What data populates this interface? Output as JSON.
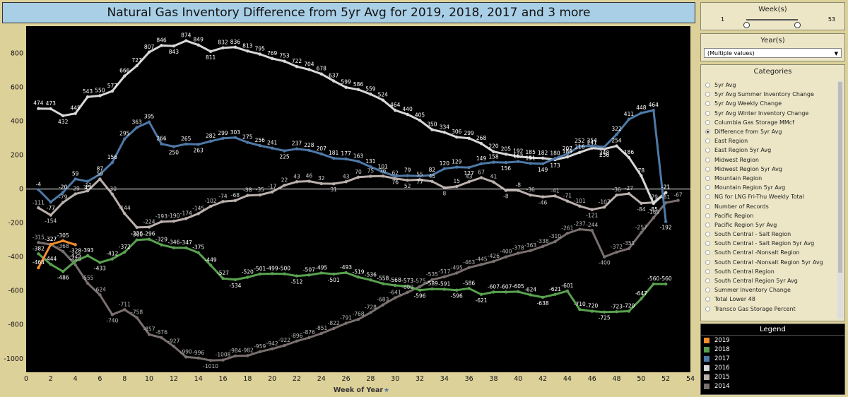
{
  "title": "Natural Gas Inventory Difference from 5yr Avg for 2019, 2018, 2017 and 3 more",
  "filters": {
    "week": {
      "title": "Week(s)",
      "min": "1",
      "max": "53"
    },
    "year": {
      "title": "Year(s)",
      "value": "(Multiple values)"
    }
  },
  "categories": {
    "title": "Categories",
    "selected": "Difference from 5yr Avg",
    "items": [
      "5yr Avg",
      "5yr Avg Summer Inventory Change",
      "5yr Avg Weekly Change",
      "5yr Avg Winter Inventory Change",
      "Columbia Gas Storage MMcf",
      "Difference from 5yr Avg",
      "East Region",
      "East Region 5yr Avg",
      "Midwest Region",
      "Midwest Region 5yr Avg",
      "Mountain Region",
      "Mountain Region 5yr Avg",
      "NG for LNG Fri-Thu Weekly Total",
      "Number of Records",
      "Pacific Region",
      "Pacific Region 5yr Avg",
      "South Central - Salt Region",
      "South Central - Salt Region 5yr Avg",
      "South Central -Nonsalt Region",
      "South Central -Nonsalt Region 5yr Avg",
      "South Central Region",
      "South Central Region 5yr Avg",
      "Summer Inventory Change",
      "Total Lower 48",
      "Transco Gas Storage Percent"
    ]
  },
  "legend": {
    "title": "Legend",
    "items": [
      {
        "label": "2019",
        "color": "#f28e2b"
      },
      {
        "label": "2018",
        "color": "#59a14f"
      },
      {
        "label": "2017",
        "color": "#4e79a7"
      },
      {
        "label": "2016",
        "color": "#d8d8d8"
      },
      {
        "label": "2015",
        "color": "#bab0ac"
      },
      {
        "label": "2014",
        "color": "#79706e"
      }
    ]
  },
  "chart_data": {
    "type": "line",
    "title": "",
    "xlabel": "Week of Year",
    "ylabel": "",
    "xlim": [
      0,
      54
    ],
    "ylim": [
      -1080,
      960
    ],
    "x_ticks": [
      0,
      2,
      4,
      6,
      8,
      10,
      12,
      14,
      16,
      18,
      20,
      22,
      24,
      26,
      28,
      30,
      32,
      34,
      36,
      38,
      40,
      42,
      44,
      46,
      48,
      50,
      52,
      54
    ],
    "y_ticks": [
      -1000,
      -800,
      -600,
      -400,
      -200,
      0,
      200,
      400,
      600,
      800
    ],
    "grid": false,
    "legend_position": "right",
    "series": [
      {
        "name": "2014",
        "color": "#79706e",
        "label_color": "#bdbdbd",
        "x": [
          1,
          2,
          3,
          4,
          5,
          6,
          7,
          8,
          9,
          10,
          11,
          12,
          13,
          14,
          15,
          16,
          17,
          18,
          19,
          20,
          21,
          22,
          23,
          24,
          25,
          26,
          27,
          28,
          29,
          30,
          31,
          32,
          33,
          34,
          35,
          36,
          37,
          38,
          39,
          40,
          41,
          42,
          43,
          44,
          45,
          46,
          47,
          48,
          49,
          50,
          51,
          52,
          53
        ],
        "y": [
          -315,
          -327,
          -368,
          -446,
          -555,
          -624,
          -740,
          -711,
          -758,
          -857,
          -876,
          -927,
          -990,
          -996,
          -1010,
          -1008,
          -984,
          -982,
          -959,
          -942,
          -922,
          -896,
          -876,
          -851,
          -822,
          -791,
          -768,
          -728,
          -683,
          -641,
          -609,
          -575,
          -535,
          -517,
          -495,
          -463,
          -445,
          -426,
          -400,
          -378,
          -363,
          -338,
          -310,
          -261,
          -237,
          -244,
          -400,
          -372,
          -351,
          -257,
          -169,
          -81,
          -67
        ]
      },
      {
        "name": "2015",
        "color": "#bab0ac",
        "label_color": "#d0d0d0",
        "x": [
          1,
          2,
          3,
          4,
          5,
          6,
          7,
          8,
          9,
          10,
          11,
          12,
          13,
          14,
          15,
          16,
          17,
          18,
          19,
          20,
          21,
          22,
          23,
          24,
          25,
          26,
          27,
          28,
          29,
          30,
          31,
          32,
          33,
          34,
          35,
          36,
          37,
          38,
          39,
          40,
          41,
          42,
          43,
          44,
          45,
          46,
          47,
          48,
          49,
          50,
          51,
          52
        ],
        "y": [
          -111,
          -154,
          -79,
          -29,
          -11,
          59,
          -30,
          -144,
          -226,
          -224,
          -193,
          -190,
          -174,
          -145,
          -102,
          -74,
          -68,
          -38,
          -35,
          -17,
          22,
          43,
          46,
          32,
          31,
          43,
          70,
          75,
          76,
          62,
          52,
          55,
          45,
          8,
          15,
          43,
          67,
          41,
          -8,
          -8,
          -36,
          -46,
          -41,
          -71,
          -101,
          -121,
          -107,
          -36,
          -27,
          -84,
          -79,
          -21
        ]
      },
      {
        "name": "2016",
        "color": "#d8d8d8",
        "label_color": "#ffffff",
        "x": [
          1,
          2,
          3,
          4,
          5,
          6,
          7,
          8,
          9,
          10,
          11,
          12,
          13,
          14,
          15,
          16,
          17,
          18,
          19,
          20,
          21,
          22,
          23,
          24,
          25,
          26,
          27,
          28,
          29,
          30,
          31,
          32,
          33,
          34,
          35,
          36,
          37,
          38,
          39,
          40,
          41,
          42,
          43,
          44,
          45,
          46,
          47,
          48,
          49,
          50,
          51,
          52
        ],
        "y": [
          474,
          473,
          432,
          445,
          543,
          550,
          577,
          666,
          727,
          807,
          846,
          843,
          874,
          849,
          811,
          832,
          836,
          813,
          795,
          769,
          753,
          722,
          704,
          678,
          637,
          599,
          586,
          559,
          524,
          464,
          440,
          405,
          350,
          334,
          306,
          299,
          268,
          220,
          205,
          192,
          185,
          182,
          173,
          189,
          216,
          241,
          236,
          254,
          186,
          78,
          -85,
          -21
        ]
      },
      {
        "name": "2017",
        "color": "#4e79a7",
        "label_color": "#ffffff",
        "x": [
          1,
          2,
          3,
          4,
          5,
          6,
          7,
          8,
          9,
          10,
          11,
          12,
          13,
          14,
          15,
          16,
          17,
          18,
          19,
          20,
          21,
          22,
          23,
          24,
          25,
          26,
          27,
          28,
          29,
          30,
          31,
          32,
          33,
          34,
          35,
          36,
          37,
          38,
          39,
          40,
          41,
          42,
          43,
          44,
          45,
          46,
          47,
          48,
          49,
          50,
          51,
          52
        ],
        "y": [
          -4,
          -77,
          -20,
          59,
          45,
          87,
          156,
          295,
          363,
          395,
          266,
          250,
          265,
          263,
          282,
          299,
          303,
          275,
          256,
          241,
          225,
          237,
          228,
          207,
          181,
          177,
          163,
          131,
          101,
          76,
          79,
          77,
          82,
          120,
          129,
          127,
          149,
          158,
          156,
          162,
          151,
          149,
          180,
          207,
          252,
          254,
          248,
          322,
          411,
          448,
          464,
          -192
        ]
      },
      {
        "name": "2018",
        "color": "#59a14f",
        "label_color": "#ffffff",
        "x": [
          1,
          2,
          3,
          4,
          5,
          6,
          7,
          8,
          9,
          10,
          11,
          12,
          13,
          14,
          15,
          16,
          17,
          18,
          19,
          20,
          21,
          22,
          23,
          24,
          25,
          26,
          27,
          28,
          29,
          30,
          31,
          32,
          33,
          34,
          35,
          36,
          37,
          38,
          39,
          40,
          41,
          42,
          43,
          44,
          45,
          46,
          47,
          48,
          49,
          50,
          51,
          52
        ],
        "y": [
          -382,
          -444,
          -486,
          -425,
          -393,
          -433,
          -412,
          -372,
          -300,
          -296,
          -329,
          -346,
          -347,
          -375,
          -449,
          -527,
          -534,
          -520,
          -501,
          -499,
          -500,
          -512,
          -507,
          -495,
          -501,
          -493,
          -519,
          -536,
          -558,
          -568,
          -573,
          -596,
          -589,
          -591,
          -596,
          -586,
          -621,
          -607,
          -607,
          -605,
          -624,
          -638,
          -621,
          -601,
          -710,
          -720,
          -725,
          -723,
          -720,
          -647,
          -560,
          -560
        ]
      },
      {
        "name": "2019",
        "color": "#f28e2b",
        "label_color": "#ffffff",
        "x": [
          1,
          2,
          3,
          4
        ],
        "y": [
          -464,
          -327,
          -305,
          -328
        ]
      }
    ]
  }
}
